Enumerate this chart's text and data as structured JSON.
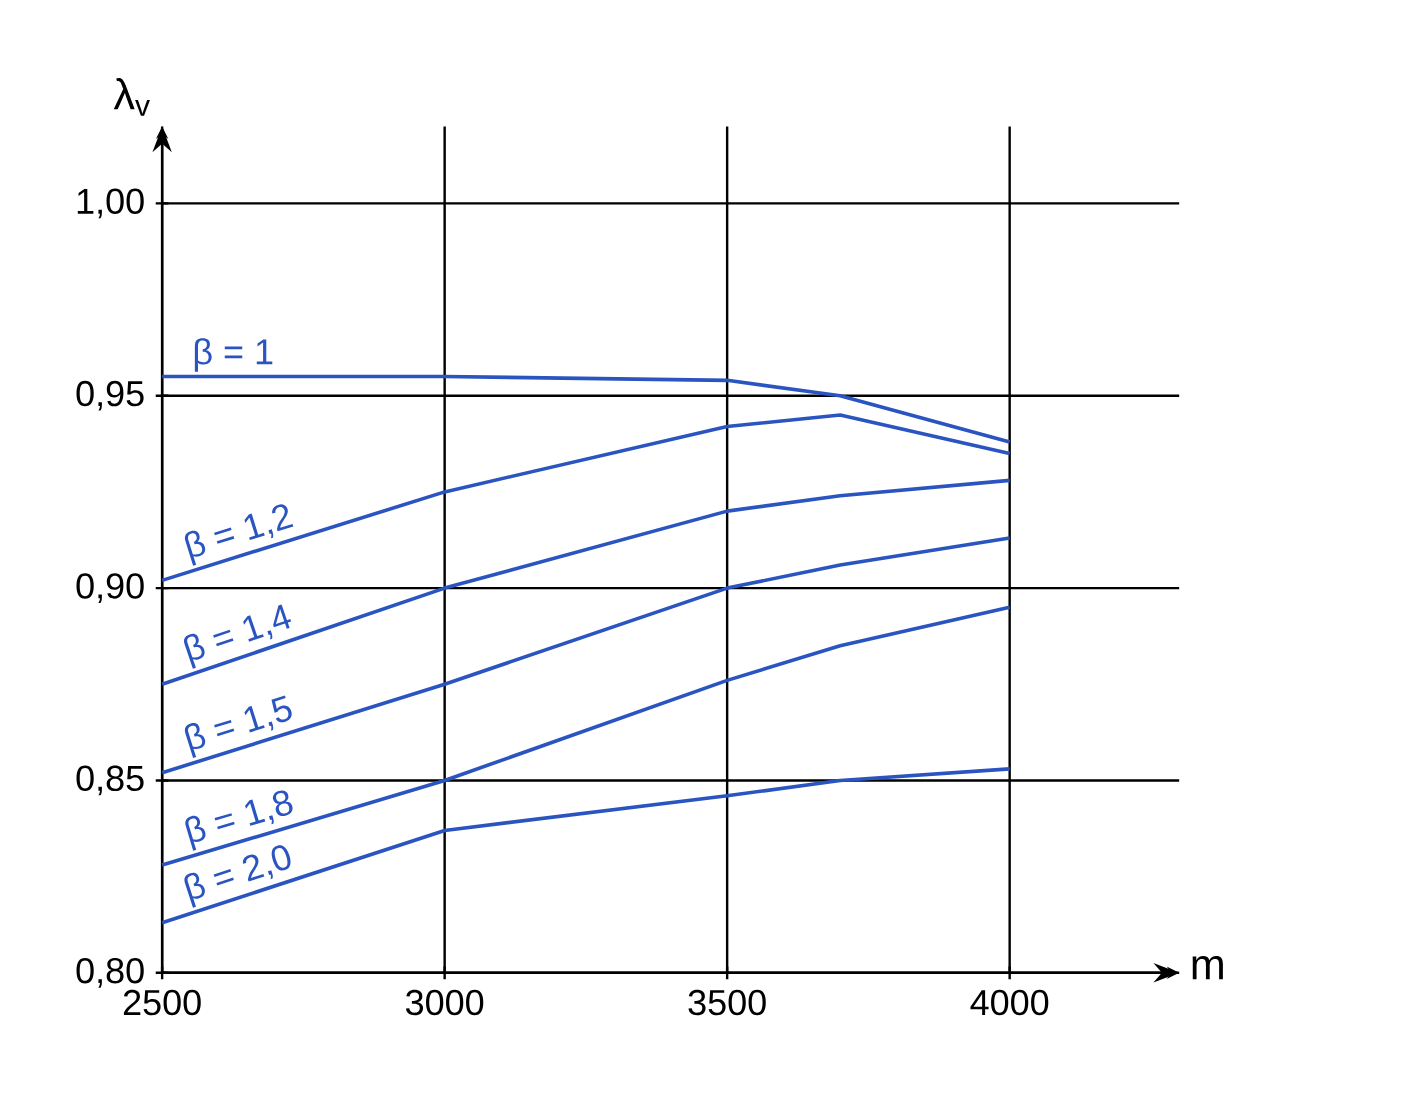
{
  "chart_data": {
    "type": "line",
    "xlabel": "m",
    "ylabel": "λ$_{v}$",
    "x": [
      2500,
      3000,
      3500,
      3700,
      4000
    ],
    "xlim": [
      2500,
      4300
    ],
    "ylim": [
      0.8,
      1.02
    ],
    "xticks": [
      2500,
      3000,
      3500,
      4000
    ],
    "yticks": [
      {
        "value": 0.8,
        "label": "0,80"
      },
      {
        "value": 0.85,
        "label": "0,85"
      },
      {
        "value": 0.9,
        "label": "0,90"
      },
      {
        "value": 0.95,
        "label": "0,95"
      },
      {
        "value": 1.0,
        "label": "1,00"
      }
    ],
    "grid": true,
    "line_style": "solid",
    "marker": "none",
    "series": [
      {
        "name": "β = 1",
        "color": "#2a55c0",
        "values": [
          0.955,
          0.955,
          0.954,
          0.95,
          0.938
        ]
      },
      {
        "name": "β = 1,2",
        "color": "#2a55c0",
        "values": [
          0.902,
          0.925,
          0.942,
          0.945,
          0.935
        ]
      },
      {
        "name": "β = 1,4",
        "color": "#2a55c0",
        "values": [
          0.875,
          0.9,
          0.92,
          0.924,
          0.928
        ]
      },
      {
        "name": "β = 1,5",
        "color": "#2a55c0",
        "values": [
          0.852,
          0.875,
          0.9,
          0.906,
          0.913
        ]
      },
      {
        "name": "β = 1,8",
        "color": "#2a55c0",
        "values": [
          0.828,
          0.85,
          0.876,
          0.885,
          0.895
        ]
      },
      {
        "name": "β = 2,0",
        "color": "#2a55c0",
        "values": [
          0.813,
          0.837,
          0.846,
          0.85,
          0.853
        ]
      }
    ]
  }
}
